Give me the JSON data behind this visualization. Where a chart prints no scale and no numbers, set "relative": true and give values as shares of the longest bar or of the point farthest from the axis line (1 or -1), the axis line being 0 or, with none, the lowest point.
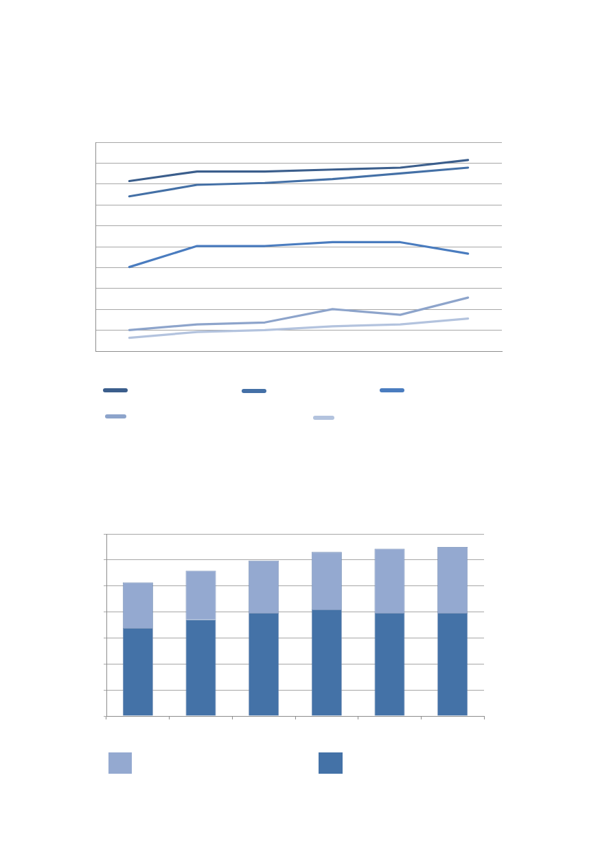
{
  "chart_data": [
    {
      "type": "line",
      "categories": [
        null,
        null,
        null,
        null,
        null,
        null
      ],
      "relative": true,
      "series": [
        {
          "color": "#3b5e8c",
          "values": [
            0.89,
            0.94,
            0.94,
            0.95,
            0.96,
            1
          ]
        },
        {
          "color": "#4470a6",
          "values": [
            0.81,
            0.87,
            0.88,
            0.9,
            0.93,
            0.96
          ]
        },
        {
          "color": "#4a7cbf",
          "values": [
            0.44,
            0.55,
            0.55,
            0.57,
            0.57,
            0.51
          ]
        },
        {
          "color": "#8da4cb",
          "values": [
            0.11,
            0.14,
            0.15,
            0.22,
            0.19,
            0.28
          ]
        },
        {
          "color": "#b3c3de",
          "values": [
            0.07,
            0.1,
            0.11,
            0.13,
            0.14,
            0.17
          ]
        }
      ],
      "grid": "y",
      "tick_labels": false,
      "marker": "none",
      "line_style": "solid"
    },
    {
      "type": "bar",
      "stacked": true,
      "categories": [
        null,
        null,
        null,
        null,
        null,
        null
      ],
      "relative": true,
      "series": [
        {
          "color": "#4472a7",
          "values": [
            0.52,
            0.57,
            0.61,
            0.63,
            0.61,
            0.61
          ]
        },
        {
          "color": "#94a9d0",
          "values": [
            0.27,
            0.29,
            0.31,
            0.34,
            0.38,
            0.39
          ]
        }
      ],
      "grid": "y",
      "tick_labels": false
    }
  ]
}
